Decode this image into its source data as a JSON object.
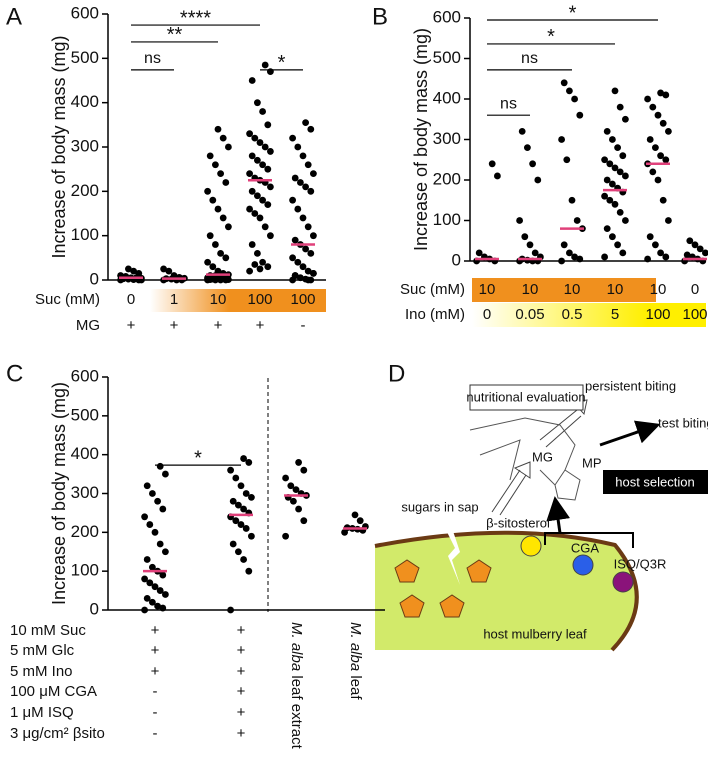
{
  "chart_data": [
    {
      "type": "strip",
      "panel": "A",
      "ylabel": "Increase of body mass (mg)",
      "ylim": [
        0,
        600
      ],
      "yticks": [
        0,
        100,
        200,
        300,
        400,
        500,
        600
      ],
      "dot_color": "#000000",
      "median_color": "#e0407a",
      "groups": [
        {
          "values": [
            0,
            0,
            1,
            2,
            3,
            4,
            5,
            5,
            8,
            10,
            15,
            20,
            25,
            3,
            0
          ]
        },
        {
          "values": [
            0,
            0,
            1,
            2,
            3,
            4,
            6,
            10,
            20,
            25,
            3,
            0
          ]
        },
        {
          "values": [
            0,
            0,
            0,
            0,
            1,
            1,
            2,
            3,
            4,
            5,
            5,
            6,
            8,
            10,
            12,
            15,
            20,
            30,
            40,
            50,
            60,
            80,
            100,
            120,
            140,
            160,
            180,
            200,
            220,
            240,
            260,
            280,
            300,
            320,
            340,
            2,
            3,
            5,
            8,
            10
          ]
        },
        {
          "values": [
            20,
            30,
            40,
            60,
            80,
            100,
            120,
            140,
            150,
            160,
            170,
            180,
            190,
            200,
            210,
            220,
            225,
            230,
            240,
            250,
            260,
            270,
            280,
            290,
            300,
            310,
            320,
            330,
            350,
            380,
            400,
            450,
            470,
            485,
            25,
            35
          ]
        },
        {
          "values": [
            0,
            0,
            2,
            5,
            10,
            15,
            20,
            30,
            40,
            50,
            60,
            70,
            80,
            90,
            100,
            120,
            140,
            160,
            180,
            200,
            210,
            220,
            230,
            240,
            260,
            280,
            300,
            320,
            340,
            355,
            5,
            10,
            15,
            0
          ]
        }
      ],
      "medians": [
        5,
        3,
        12,
        225,
        80
      ],
      "brackets": [
        {
          "from": 0,
          "to": 1,
          "y": 474,
          "label": "ns"
        },
        {
          "from": 0,
          "to": 2,
          "y": 537,
          "label": "**"
        },
        {
          "from": 0,
          "to": 3,
          "y": 575,
          "label": "****"
        },
        {
          "from": 3,
          "to": 4,
          "y": 474,
          "label": "*"
        }
      ],
      "rows": [
        {
          "label": "Suc (mM)",
          "values": [
            "0",
            "1",
            "10",
            "100",
            "100"
          ]
        },
        {
          "label": "MG",
          "values": [
            "+",
            "+",
            "+",
            "+",
            "-"
          ]
        }
      ]
    },
    {
      "type": "strip",
      "panel": "B",
      "ylabel": "Increase of body mass (mg)",
      "ylim": [
        0,
        600
      ],
      "yticks": [
        0,
        100,
        200,
        300,
        400,
        500,
        600
      ],
      "dot_color": "#000000",
      "median_color": "#e0407a",
      "groups": [
        {
          "values": [
            0,
            0,
            5,
            10,
            20,
            210,
            240
          ]
        },
        {
          "values": [
            0,
            0,
            0,
            2,
            5,
            10,
            20,
            40,
            60,
            100,
            200,
            240,
            280,
            320
          ]
        },
        {
          "values": [
            0,
            5,
            10,
            20,
            40,
            80,
            100,
            150,
            250,
            300,
            360,
            400,
            420,
            440
          ]
        },
        {
          "values": [
            10,
            20,
            40,
            60,
            80,
            100,
            120,
            140,
            150,
            160,
            170,
            180,
            190,
            200,
            210,
            220,
            230,
            240,
            250,
            260,
            280,
            300,
            320,
            350,
            380,
            420
          ]
        },
        {
          "values": [
            5,
            10,
            20,
            40,
            60,
            100,
            150,
            200,
            220,
            240,
            250,
            260,
            280,
            300,
            320,
            340,
            360,
            380,
            400,
            410,
            415
          ]
        },
        {
          "values": [
            0,
            0,
            5,
            10,
            15,
            20,
            30,
            40,
            50
          ]
        }
      ],
      "medians": [
        5,
        5,
        80,
        175,
        240,
        5
      ],
      "brackets": [
        {
          "from": 0,
          "to": 1,
          "y": 360,
          "label": "ns"
        },
        {
          "from": 0,
          "to": 2,
          "y": 472,
          "label": "ns"
        },
        {
          "from": 0,
          "to": 3,
          "y": 536,
          "label": "*"
        },
        {
          "from": 0,
          "to": 4,
          "y": 595,
          "label": "*"
        }
      ],
      "rows": [
        {
          "label": "Suc (mM)",
          "values": [
            "10",
            "10",
            "10",
            "10",
            "10",
            "0"
          ]
        },
        {
          "label": "Ino (mM)",
          "values": [
            "0",
            "0.05",
            "0.5",
            "5",
            "100",
            "100"
          ]
        }
      ]
    },
    {
      "type": "strip",
      "panel": "C",
      "ylabel": "Increase of body mass (mg)",
      "ylim": [
        0,
        600
      ],
      "yticks": [
        0,
        100,
        200,
        300,
        400,
        500,
        600
      ],
      "dot_color": "#000000",
      "median_color": "#e0407a",
      "groups": [
        {
          "values": [
            0,
            5,
            10,
            20,
            30,
            40,
            50,
            60,
            70,
            80,
            90,
            100,
            110,
            130,
            150,
            170,
            200,
            220,
            240,
            260,
            280,
            300,
            320,
            350,
            370
          ]
        },
        {
          "values": [
            0,
            100,
            130,
            150,
            170,
            190,
            210,
            220,
            230,
            240,
            250,
            260,
            270,
            280,
            290,
            300,
            320,
            340,
            360,
            380,
            390
          ]
        },
        {
          "values": [
            190,
            230,
            260,
            280,
            290,
            295,
            300,
            310,
            320,
            340,
            360,
            380
          ]
        },
        {
          "values": [
            200,
            205,
            208,
            210,
            212,
            215,
            230,
            245
          ]
        }
      ],
      "medians": [
        100,
        245,
        295,
        210
      ],
      "brackets": [
        {
          "from": 0,
          "to": 1,
          "y": 373,
          "label": "*"
        }
      ],
      "species": "M. alba",
      "categories": [
        null,
        null,
        " leaf extract",
        " leaf"
      ],
      "rows": [
        {
          "label": "10 mM Suc",
          "values": [
            "+",
            "+"
          ]
        },
        {
          "label": "5 mM Glc",
          "values": [
            "+",
            "+"
          ]
        },
        {
          "label": "5 mM Ino",
          "values": [
            "+",
            "+"
          ]
        },
        {
          "label": "100 μM CGA",
          "values": [
            "-",
            "+"
          ]
        },
        {
          "label": "1 μM ISQ",
          "values": [
            "-",
            "+"
          ]
        },
        {
          "label": "3 μg/cm² βsito",
          "values": [
            "-",
            "+"
          ]
        }
      ]
    }
  ],
  "diagram": {
    "panel": "D",
    "nutritional": "nutritional evaluation",
    "persistent": "persistent biting",
    "test": "test biting",
    "mg": "MG",
    "mp": "MP",
    "host_selection": "host selection",
    "sugars": "sugars in sap",
    "sitosterol": "β-sitosterol",
    "cga": "CGA",
    "isq": "ISQ/Q3R",
    "leaf": "host mulberry leaf"
  }
}
